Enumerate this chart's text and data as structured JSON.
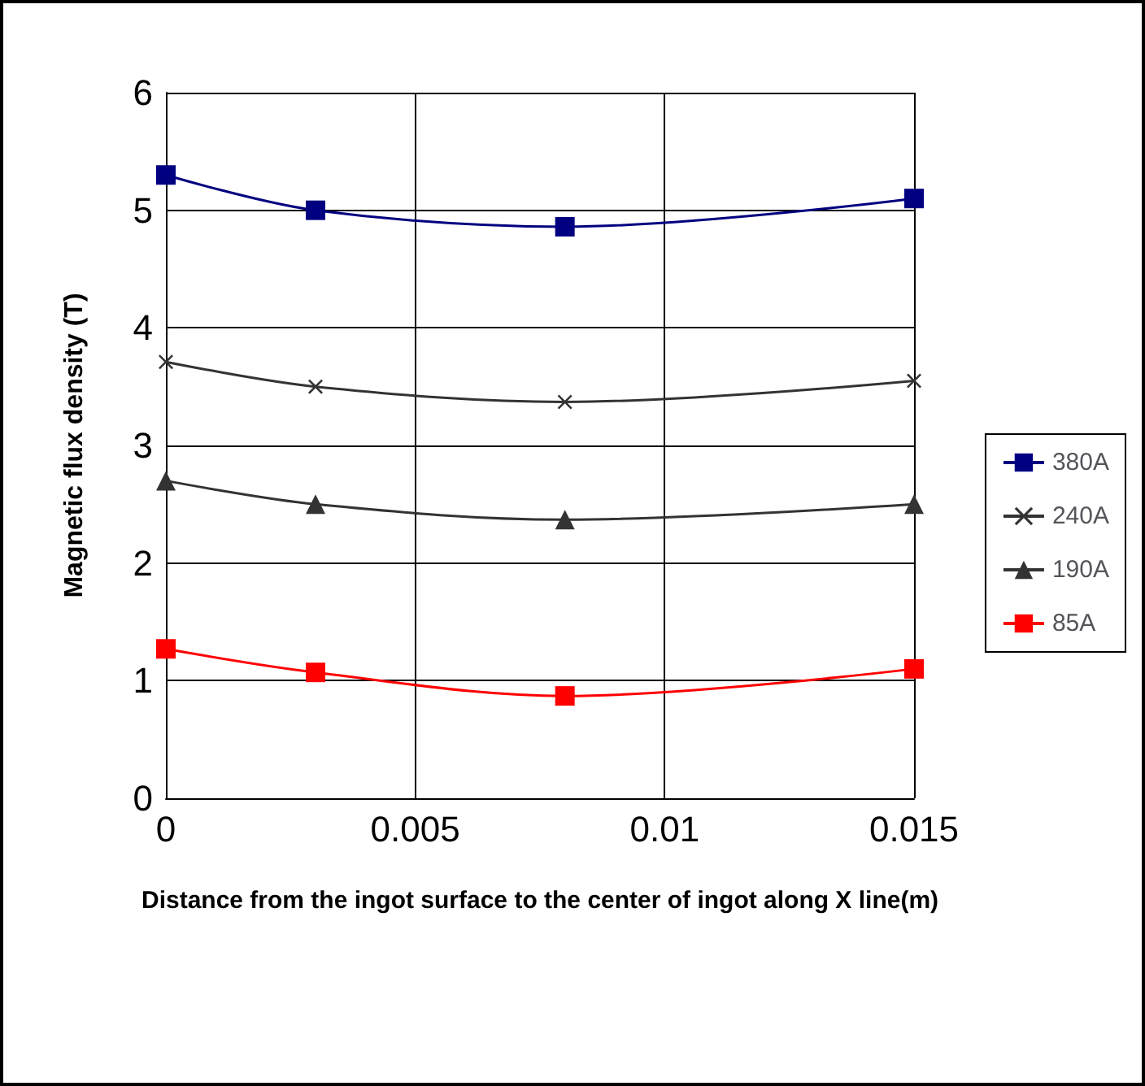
{
  "chart_data": {
    "type": "line",
    "xlabel": "Distance from the ingot surface to the center of ingot along X line(m)",
    "ylabel": "Magnetic flux density (T)",
    "x": [
      0,
      0.003,
      0.008,
      0.015
    ],
    "xlim": [
      0,
      0.015
    ],
    "xticks": [
      0,
      0.005,
      0.01,
      0.015
    ],
    "ylim": [
      0,
      6
    ],
    "yticks": [
      0,
      1,
      2,
      3,
      4,
      5,
      6
    ],
    "grid": true,
    "legend": "right",
    "series": [
      {
        "name": "380A",
        "color": "#000080",
        "marker": "square",
        "values": [
          5.3,
          5.0,
          4.86,
          5.1
        ]
      },
      {
        "name": "240A",
        "color": "#333333",
        "marker": "cross",
        "values": [
          3.71,
          3.5,
          3.37,
          3.55
        ]
      },
      {
        "name": "190A",
        "color": "#333333",
        "marker": "triangle",
        "values": [
          2.7,
          2.5,
          2.37,
          2.5
        ]
      },
      {
        "name": "85A",
        "color": "#ff0000",
        "marker": "square",
        "values": [
          1.27,
          1.07,
          0.87,
          1.1
        ]
      }
    ]
  }
}
